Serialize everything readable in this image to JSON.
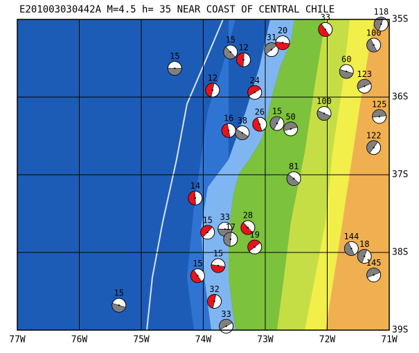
{
  "title": "E201003030442A M=4.5 h= 35 NEAR COAST OF CENTRAL CHILE",
  "map": {
    "xlim": [
      -77,
      -71
    ],
    "ylim": [
      -39,
      -35
    ],
    "grid": true,
    "xticks": [
      {
        "value": -77,
        "label": "77W"
      },
      {
        "value": -76,
        "label": "76W"
      },
      {
        "value": -75,
        "label": "75W"
      },
      {
        "value": -74,
        "label": "74W"
      },
      {
        "value": -73,
        "label": "73W"
      },
      {
        "value": -72,
        "label": "72W"
      },
      {
        "value": -71,
        "label": "71W"
      }
    ],
    "yticks": [
      {
        "value": -35,
        "label": "35S"
      },
      {
        "value": -36,
        "label": "36S"
      },
      {
        "value": -37,
        "label": "37S"
      },
      {
        "value": -38,
        "label": "38S"
      },
      {
        "value": -39,
        "label": "39S"
      }
    ],
    "events": [
      {
        "lon": -74.46,
        "lat": -35.63,
        "depth": 15,
        "color": "#808080"
      },
      {
        "lon": -73.56,
        "lat": -35.42,
        "depth": 15,
        "color": "#808080"
      },
      {
        "lon": -73.35,
        "lat": -35.52,
        "depth": 12,
        "color": "#e8141a"
      },
      {
        "lon": -72.9,
        "lat": -35.39,
        "depth": 31,
        "color": "#808080"
      },
      {
        "lon": -72.72,
        "lat": -35.3,
        "depth": 20,
        "color": "#e8141a"
      },
      {
        "lon": -72.03,
        "lat": -35.13,
        "depth": 33,
        "color": "#e8141a"
      },
      {
        "lon": -73.85,
        "lat": -35.91,
        "depth": 12,
        "color": "#e8141a"
      },
      {
        "lon": -73.17,
        "lat": -35.94,
        "depth": 24,
        "color": "#e8141a"
      },
      {
        "lon": -71.69,
        "lat": -35.67,
        "depth": 60,
        "color": "#808080"
      },
      {
        "lon": -71.25,
        "lat": -35.33,
        "depth": 100,
        "color": "#808080"
      },
      {
        "lon": -71.13,
        "lat": -35.06,
        "depth": 118,
        "color": "#808080"
      },
      {
        "lon": -71.4,
        "lat": -35.86,
        "depth": 123,
        "color": "#808080"
      },
      {
        "lon": -72.05,
        "lat": -36.21,
        "depth": 100,
        "color": "#808080"
      },
      {
        "lon": -73.09,
        "lat": -36.35,
        "depth": 26,
        "color": "#e8141a"
      },
      {
        "lon": -72.81,
        "lat": -36.34,
        "depth": 15,
        "color": "#808080"
      },
      {
        "lon": -72.59,
        "lat": -36.41,
        "depth": 50,
        "color": "#808080"
      },
      {
        "lon": -73.37,
        "lat": -36.46,
        "depth": 38,
        "color": "#808080"
      },
      {
        "lon": -73.59,
        "lat": -36.43,
        "depth": 16,
        "color": "#e8141a"
      },
      {
        "lon": -71.25,
        "lat": -36.65,
        "depth": 122,
        "color": "#808080"
      },
      {
        "lon": -71.16,
        "lat": -36.25,
        "depth": 125,
        "color": "#808080"
      },
      {
        "lon": -72.54,
        "lat": -37.05,
        "depth": 81,
        "color": "#808080"
      },
      {
        "lon": -74.13,
        "lat": -37.3,
        "depth": 14,
        "color": "#e8141a"
      },
      {
        "lon": -73.93,
        "lat": -37.74,
        "depth": 15,
        "color": "#e8141a"
      },
      {
        "lon": -73.65,
        "lat": -37.7,
        "depth": 33,
        "color": "#808080"
      },
      {
        "lon": -73.28,
        "lat": -37.68,
        "depth": 28,
        "color": "#e8141a"
      },
      {
        "lon": -73.56,
        "lat": -37.83,
        "depth": 17,
        "color": "#808080"
      },
      {
        "lon": -73.17,
        "lat": -37.93,
        "depth": 19,
        "color": "#e8141a"
      },
      {
        "lon": -73.76,
        "lat": -38.17,
        "depth": 15,
        "color": "#e8141a"
      },
      {
        "lon": -74.09,
        "lat": -38.3,
        "depth": 15,
        "color": "#e8141a"
      },
      {
        "lon": -73.82,
        "lat": -38.63,
        "depth": 32,
        "color": "#e8141a"
      },
      {
        "lon": -73.63,
        "lat": -38.95,
        "depth": 33,
        "color": "#808080"
      },
      {
        "lon": -75.36,
        "lat": -38.68,
        "depth": 15,
        "color": "#808080"
      },
      {
        "lon": -71.61,
        "lat": -37.95,
        "depth": 144,
        "color": "#808080"
      },
      {
        "lon": -71.4,
        "lat": -38.05,
        "depth": 18,
        "color": "#808080"
      },
      {
        "lon": -71.25,
        "lat": -38.29,
        "depth": 145,
        "color": "#808080"
      }
    ]
  }
}
